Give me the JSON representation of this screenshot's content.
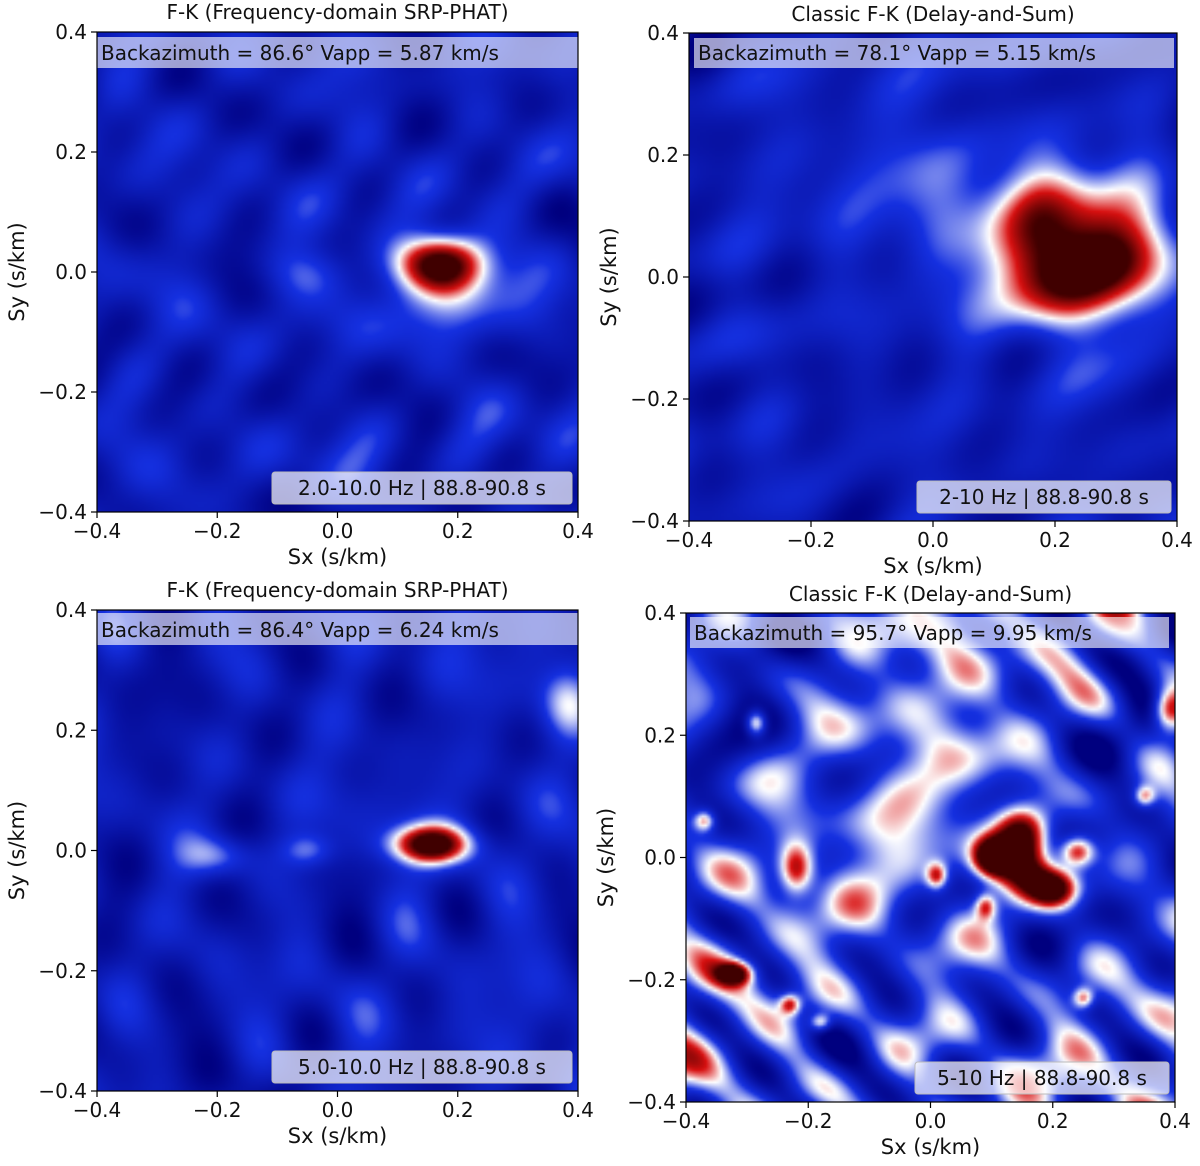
{
  "chart_data": [
    {
      "type": "heatmap",
      "title": "F-K (Frequency-domain SRP-PHAT)",
      "xlabel": "Sx (s/km)",
      "ylabel": "Sy (s/km)",
      "xlim": [
        -0.4,
        0.4
      ],
      "ylim": [
        -0.4,
        0.4
      ],
      "xticks": [
        "−0.4",
        "−0.2",
        "0.0",
        "0.2",
        "0.4"
      ],
      "yticks": [
        "−0.4",
        "−0.2",
        "0.0",
        "0.2",
        "0.4"
      ],
      "info": "Backazimuth = 86.6°     Vapp = 5.87 km/s",
      "band": "2.0-10.0 Hz | 88.8-90.8 s",
      "colormap": [
        "#00007f",
        "#1530e0",
        "#ffffff",
        "#d81010",
        "#400000"
      ],
      "peaks": [
        {
          "sx": 0.17,
          "sy": 0.015,
          "amp": 1.0,
          "wx": 0.055,
          "wy": 0.033
        },
        {
          "sx": 0.19,
          "sy": -0.05,
          "amp": 0.35,
          "wx": 0.05,
          "wy": 0.05
        },
        {
          "sx": -0.05,
          "sy": 0.0,
          "amp": 0.18,
          "wx": 0.05,
          "wy": 0.03
        }
      ]
    },
    {
      "type": "heatmap",
      "title": "Classic F-K (Delay-and-Sum)",
      "xlabel": "Sx (s/km)",
      "ylabel": "Sy (s/km)",
      "xlim": [
        -0.4,
        0.4
      ],
      "ylim": [
        -0.4,
        0.4
      ],
      "xticks": [
        "−0.4",
        "−0.2",
        "0.0",
        "0.2",
        "0.4"
      ],
      "yticks": [
        "−0.4",
        "−0.2",
        "0.0",
        "0.2",
        "0.4"
      ],
      "info": "Backazimuth = 78.1°     Vapp = 5.15 km/s",
      "band": "2-10 Hz | 88.8-90.8 s",
      "colormap": [
        "#00007f",
        "#1530e0",
        "#ffffff",
        "#d81010",
        "#400000"
      ],
      "peaks": [
        {
          "sx": 0.18,
          "sy": 0.045,
          "amp": 1.0,
          "wx": 0.07,
          "wy": 0.085
        },
        {
          "sx": 0.31,
          "sy": 0.035,
          "amp": 0.78,
          "wx": 0.06,
          "wy": 0.075
        },
        {
          "sx": -0.05,
          "sy": 0.15,
          "amp": 0.2,
          "wx": 0.1,
          "wy": 0.1
        }
      ]
    },
    {
      "type": "heatmap",
      "title": "F-K (Frequency-domain SRP-PHAT)",
      "xlabel": "Sx (s/km)",
      "ylabel": "Sy (s/km)",
      "xlim": [
        -0.4,
        0.4
      ],
      "ylim": [
        -0.4,
        0.4
      ],
      "xticks": [
        "−0.4",
        "−0.2",
        "0.0",
        "0.2",
        "0.4"
      ],
      "yticks": [
        "−0.4",
        "−0.2",
        "0.0",
        "0.2",
        "0.4"
      ],
      "info": "Backazimuth = 86.4°     Vapp = 6.24 km/s",
      "band": "5.0-10.0 Hz | 88.8-90.8 s",
      "colormap": [
        "#00007f",
        "#1530e0",
        "#ffffff",
        "#d81010",
        "#400000"
      ],
      "peaks": [
        {
          "sx": 0.155,
          "sy": 0.01,
          "amp": 1.0,
          "wx": 0.045,
          "wy": 0.022
        },
        {
          "sx": -0.2,
          "sy": -0.01,
          "amp": 0.35,
          "wx": 0.04,
          "wy": 0.025
        },
        {
          "sx": -0.05,
          "sy": 0.0,
          "amp": 0.3,
          "wx": 0.03,
          "wy": 0.02
        },
        {
          "sx": 0.38,
          "sy": 0.25,
          "amp": 0.3,
          "wx": 0.03,
          "wy": 0.04
        }
      ]
    },
    {
      "type": "heatmap",
      "title": "Classic F-K (Delay-and-Sum)",
      "xlabel": "Sx (s/km)",
      "ylabel": "Sy (s/km)",
      "xlim": [
        -0.4,
        0.4
      ],
      "ylim": [
        -0.4,
        0.4
      ],
      "xticks": [
        "−0.4",
        "−0.2",
        "0.0",
        "0.2",
        "0.4"
      ],
      "yticks": [
        "−0.4",
        "−0.2",
        "0.0",
        "0.2",
        "0.4"
      ],
      "info": "Backazimuth = 95.7°     Vapp = 9.95 km/s",
      "band": "5-10 Hz | 88.8-90.8 s",
      "colormap": [
        "#00007f",
        "#1530e0",
        "#ffffff",
        "#d81010",
        "#400000"
      ],
      "peaks": [
        {
          "sx": 0.1,
          "sy": 0.0,
          "amp": 1.0,
          "wx": 0.022,
          "wy": 0.022
        },
        {
          "sx": 0.15,
          "sy": 0.04,
          "amp": 0.85,
          "wx": 0.03,
          "wy": 0.03
        },
        {
          "sx": 0.2,
          "sy": -0.05,
          "amp": 0.95,
          "wx": 0.028,
          "wy": 0.022
        },
        {
          "sx": 0.24,
          "sy": 0.01,
          "amp": 0.8,
          "wx": 0.02,
          "wy": 0.018
        },
        {
          "sx": 0.15,
          "sy": -0.02,
          "amp": 0.7,
          "wx": 0.03,
          "wy": 0.03
        },
        {
          "sx": -0.22,
          "sy": -0.02,
          "amp": 0.8,
          "wx": 0.02,
          "wy": 0.03
        },
        {
          "sx": -0.32,
          "sy": -0.19,
          "amp": 0.82,
          "wx": 0.02,
          "wy": 0.013
        },
        {
          "sx": -0.285,
          "sy": 0.22,
          "amp": 0.7,
          "wx": 0.012,
          "wy": 0.015
        },
        {
          "sx": 0.39,
          "sy": 0.24,
          "amp": 0.8,
          "wx": 0.02,
          "wy": 0.025
        },
        {
          "sx": 0.01,
          "sy": -0.03,
          "amp": 0.6,
          "wx": 0.012,
          "wy": 0.015
        },
        {
          "sx": 0.09,
          "sy": -0.08,
          "amp": 0.55,
          "wx": 0.012,
          "wy": 0.015
        },
        {
          "sx": -0.23,
          "sy": -0.24,
          "amp": 0.6,
          "wx": 0.012,
          "wy": 0.012
        },
        {
          "sx": -0.37,
          "sy": 0.06,
          "amp": 0.55,
          "wx": 0.012,
          "wy": 0.012
        },
        {
          "sx": 0.25,
          "sy": -0.23,
          "amp": 0.55,
          "wx": 0.012,
          "wy": 0.012
        },
        {
          "sx": 0.35,
          "sy": 0.1,
          "amp": 0.5,
          "wx": 0.012,
          "wy": 0.012
        },
        {
          "sx": -0.18,
          "sy": -0.27,
          "amp": 0.5,
          "wx": 0.012,
          "wy": 0.01
        }
      ]
    }
  ]
}
